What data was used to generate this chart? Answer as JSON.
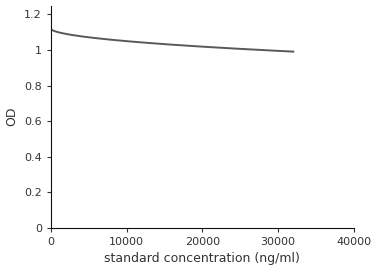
{
  "title": "",
  "xlabel": "standard concentration (ng/ml)",
  "ylabel": "OD",
  "xlim": [
    0,
    40000
  ],
  "ylim": [
    0,
    1.25
  ],
  "xticks": [
    0,
    10000,
    20000,
    30000,
    40000
  ],
  "yticks": [
    0,
    0.2,
    0.4,
    0.6,
    0.8,
    1.0,
    1.2
  ],
  "line_color": "#595959",
  "line_width": 1.4,
  "background_color": "#ffffff",
  "curve_x_end": 32000,
  "curve_y_start": 1.12,
  "asymptote": 0.1,
  "decay_k": 0.00045,
  "decay_power": 0.55
}
